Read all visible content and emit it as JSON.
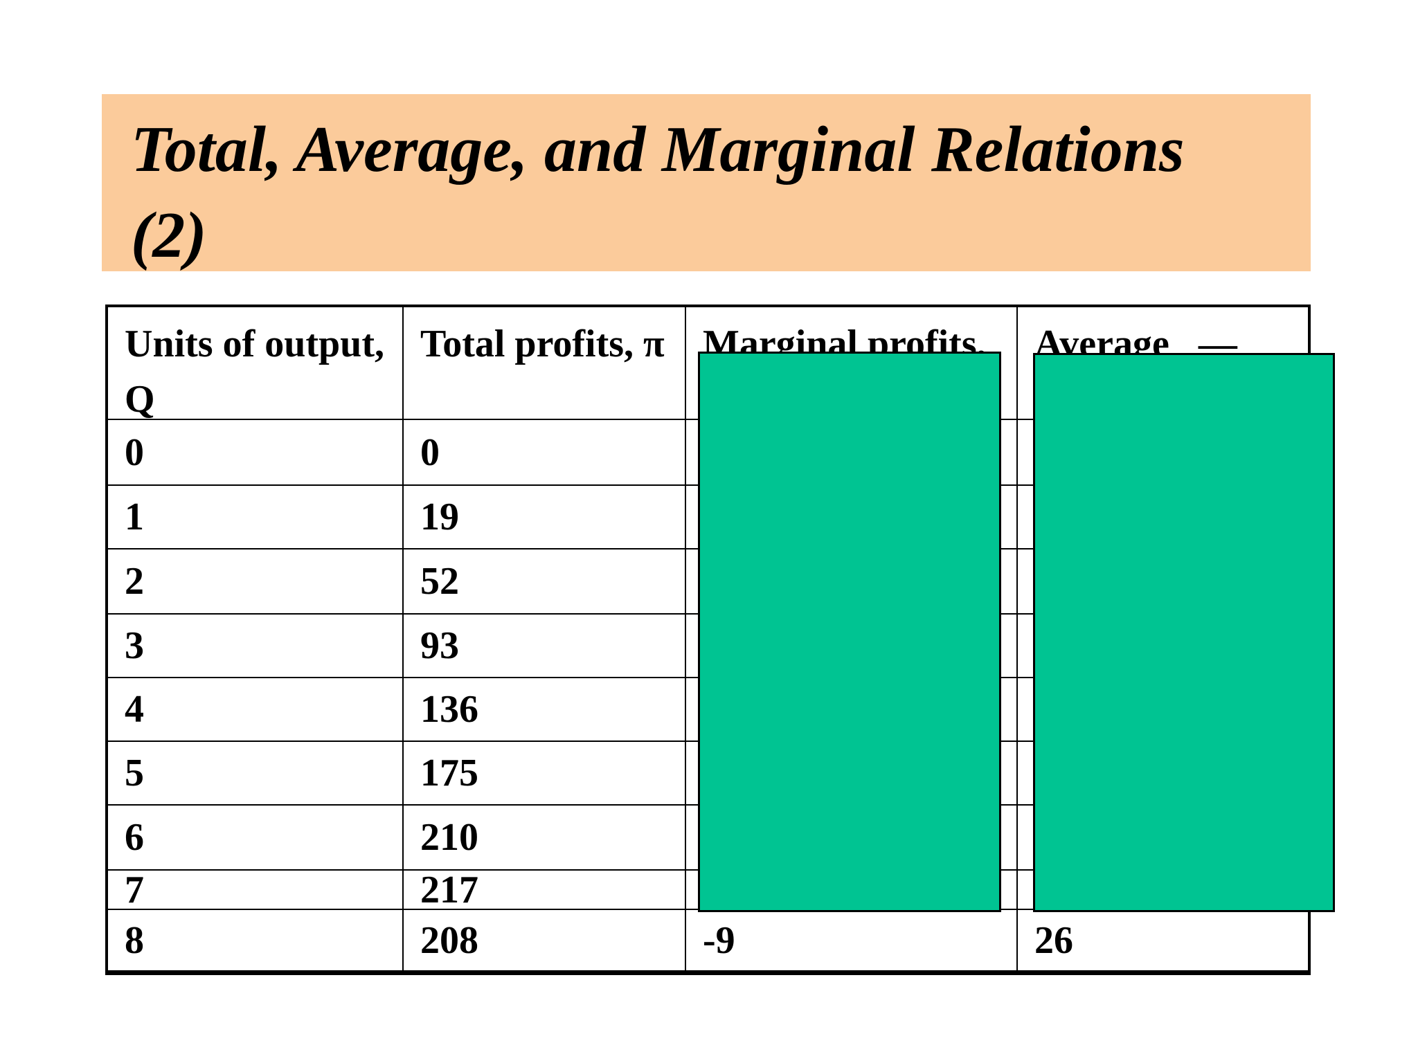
{
  "slide": {
    "title_line1": "Total, Average, and Marginal Relations",
    "title_line2": "(2)",
    "title_bg_color": "#FBCB9B"
  },
  "table": {
    "headers": [
      "Units of output,\nQ",
      "Total profits, π",
      "Marginal profits,",
      "Average   —"
    ],
    "rows": [
      [
        "0",
        "0",
        "",
        ""
      ],
      [
        "1",
        "19",
        "",
        ""
      ],
      [
        "2",
        "52",
        "",
        ""
      ],
      [
        "3",
        "93",
        "",
        ""
      ],
      [
        "4",
        "136",
        "",
        ""
      ],
      [
        "5",
        "175",
        "",
        ""
      ],
      [
        "6",
        "210",
        "",
        ""
      ],
      [
        "7",
        "217",
        "",
        ""
      ],
      [
        "8",
        "208",
        "-9",
        "26"
      ]
    ]
  },
  "overlays": {
    "color": "#00C492",
    "count": 2
  }
}
